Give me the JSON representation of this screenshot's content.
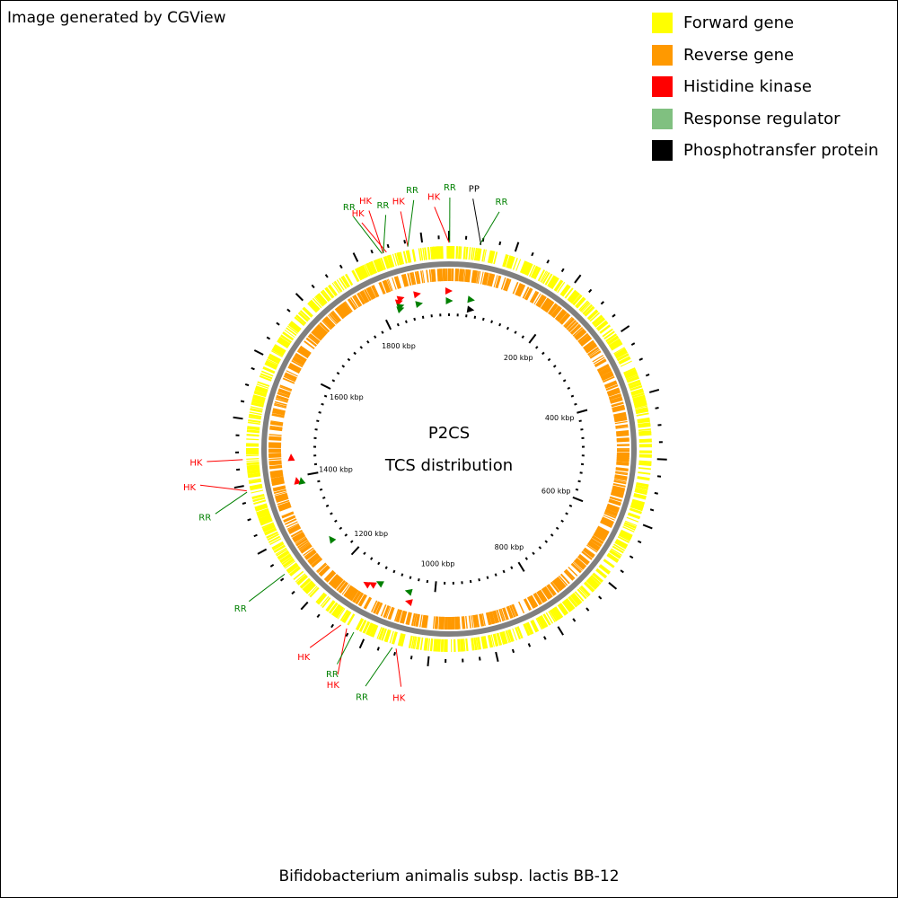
{
  "credit": "Image generated by CGView",
  "center": {
    "title": "P2CS",
    "subtitle": "TCS distribution"
  },
  "organism": "Bifidobacterium animalis subsp. lactis BB-12",
  "colors": {
    "forward": "#ffff00",
    "reverse": "#ff9900",
    "hk": "#ff0000",
    "rr": "#008000",
    "rr_legend": "#80c080",
    "pp": "#000000",
    "backbone": "#808080"
  },
  "legend": [
    {
      "label": "Forward gene",
      "color": "#ffff00"
    },
    {
      "label": "Reverse gene",
      "color": "#ff9900"
    },
    {
      "label": "Histidine kinase",
      "color": "#ff0000"
    },
    {
      "label": "Response regulator",
      "color": "#80c080"
    },
    {
      "label": "Phosphotransfer protein",
      "color": "#000000"
    }
  ],
  "genome": {
    "length_kbp": 1940,
    "tick_labels": [
      "200 kbp",
      "400 kbp",
      "600 kbp",
      "800 kbp",
      "1000 kbp",
      "1200 kbp",
      "1400 kbp",
      "1600 kbp",
      "1800 kbp"
    ]
  },
  "features": [
    {
      "type": "HK",
      "label": "HK",
      "pos_kbp": 0
    },
    {
      "type": "RR",
      "label": "RR",
      "pos_kbp": 1
    },
    {
      "type": "RR",
      "label": "RR",
      "pos_kbp": 46
    },
    {
      "type": "PP",
      "label": "PP",
      "pos_kbp": 48
    },
    {
      "type": "HK",
      "label": "HK",
      "pos_kbp": 1878
    },
    {
      "type": "RR",
      "label": "RR",
      "pos_kbp": 1878
    },
    {
      "type": "HK",
      "label": "HK",
      "pos_kbp": 1845
    },
    {
      "type": "HK",
      "label": "HK",
      "pos_kbp": 1840
    },
    {
      "type": "RR",
      "label": "RR",
      "pos_kbp": 1840
    },
    {
      "type": "RR",
      "label": "RR",
      "pos_kbp": 1838
    },
    {
      "type": "HK",
      "label": "HK",
      "pos_kbp": 1439
    },
    {
      "type": "HK",
      "label": "HK",
      "pos_kbp": 1392
    },
    {
      "type": "RR",
      "label": "RR",
      "pos_kbp": 1390
    },
    {
      "type": "RR",
      "label": "RR",
      "pos_kbp": 1254
    },
    {
      "type": "HK",
      "label": "HK",
      "pos_kbp": 1140
    },
    {
      "type": "HK",
      "label": "HK",
      "pos_kbp": 1130
    },
    {
      "type": "RR",
      "label": "RR",
      "pos_kbp": 1118
    },
    {
      "type": "RR",
      "label": "RR",
      "pos_kbp": 1056
    },
    {
      "type": "HK",
      "label": "HK",
      "pos_kbp": 1050
    }
  ]
}
